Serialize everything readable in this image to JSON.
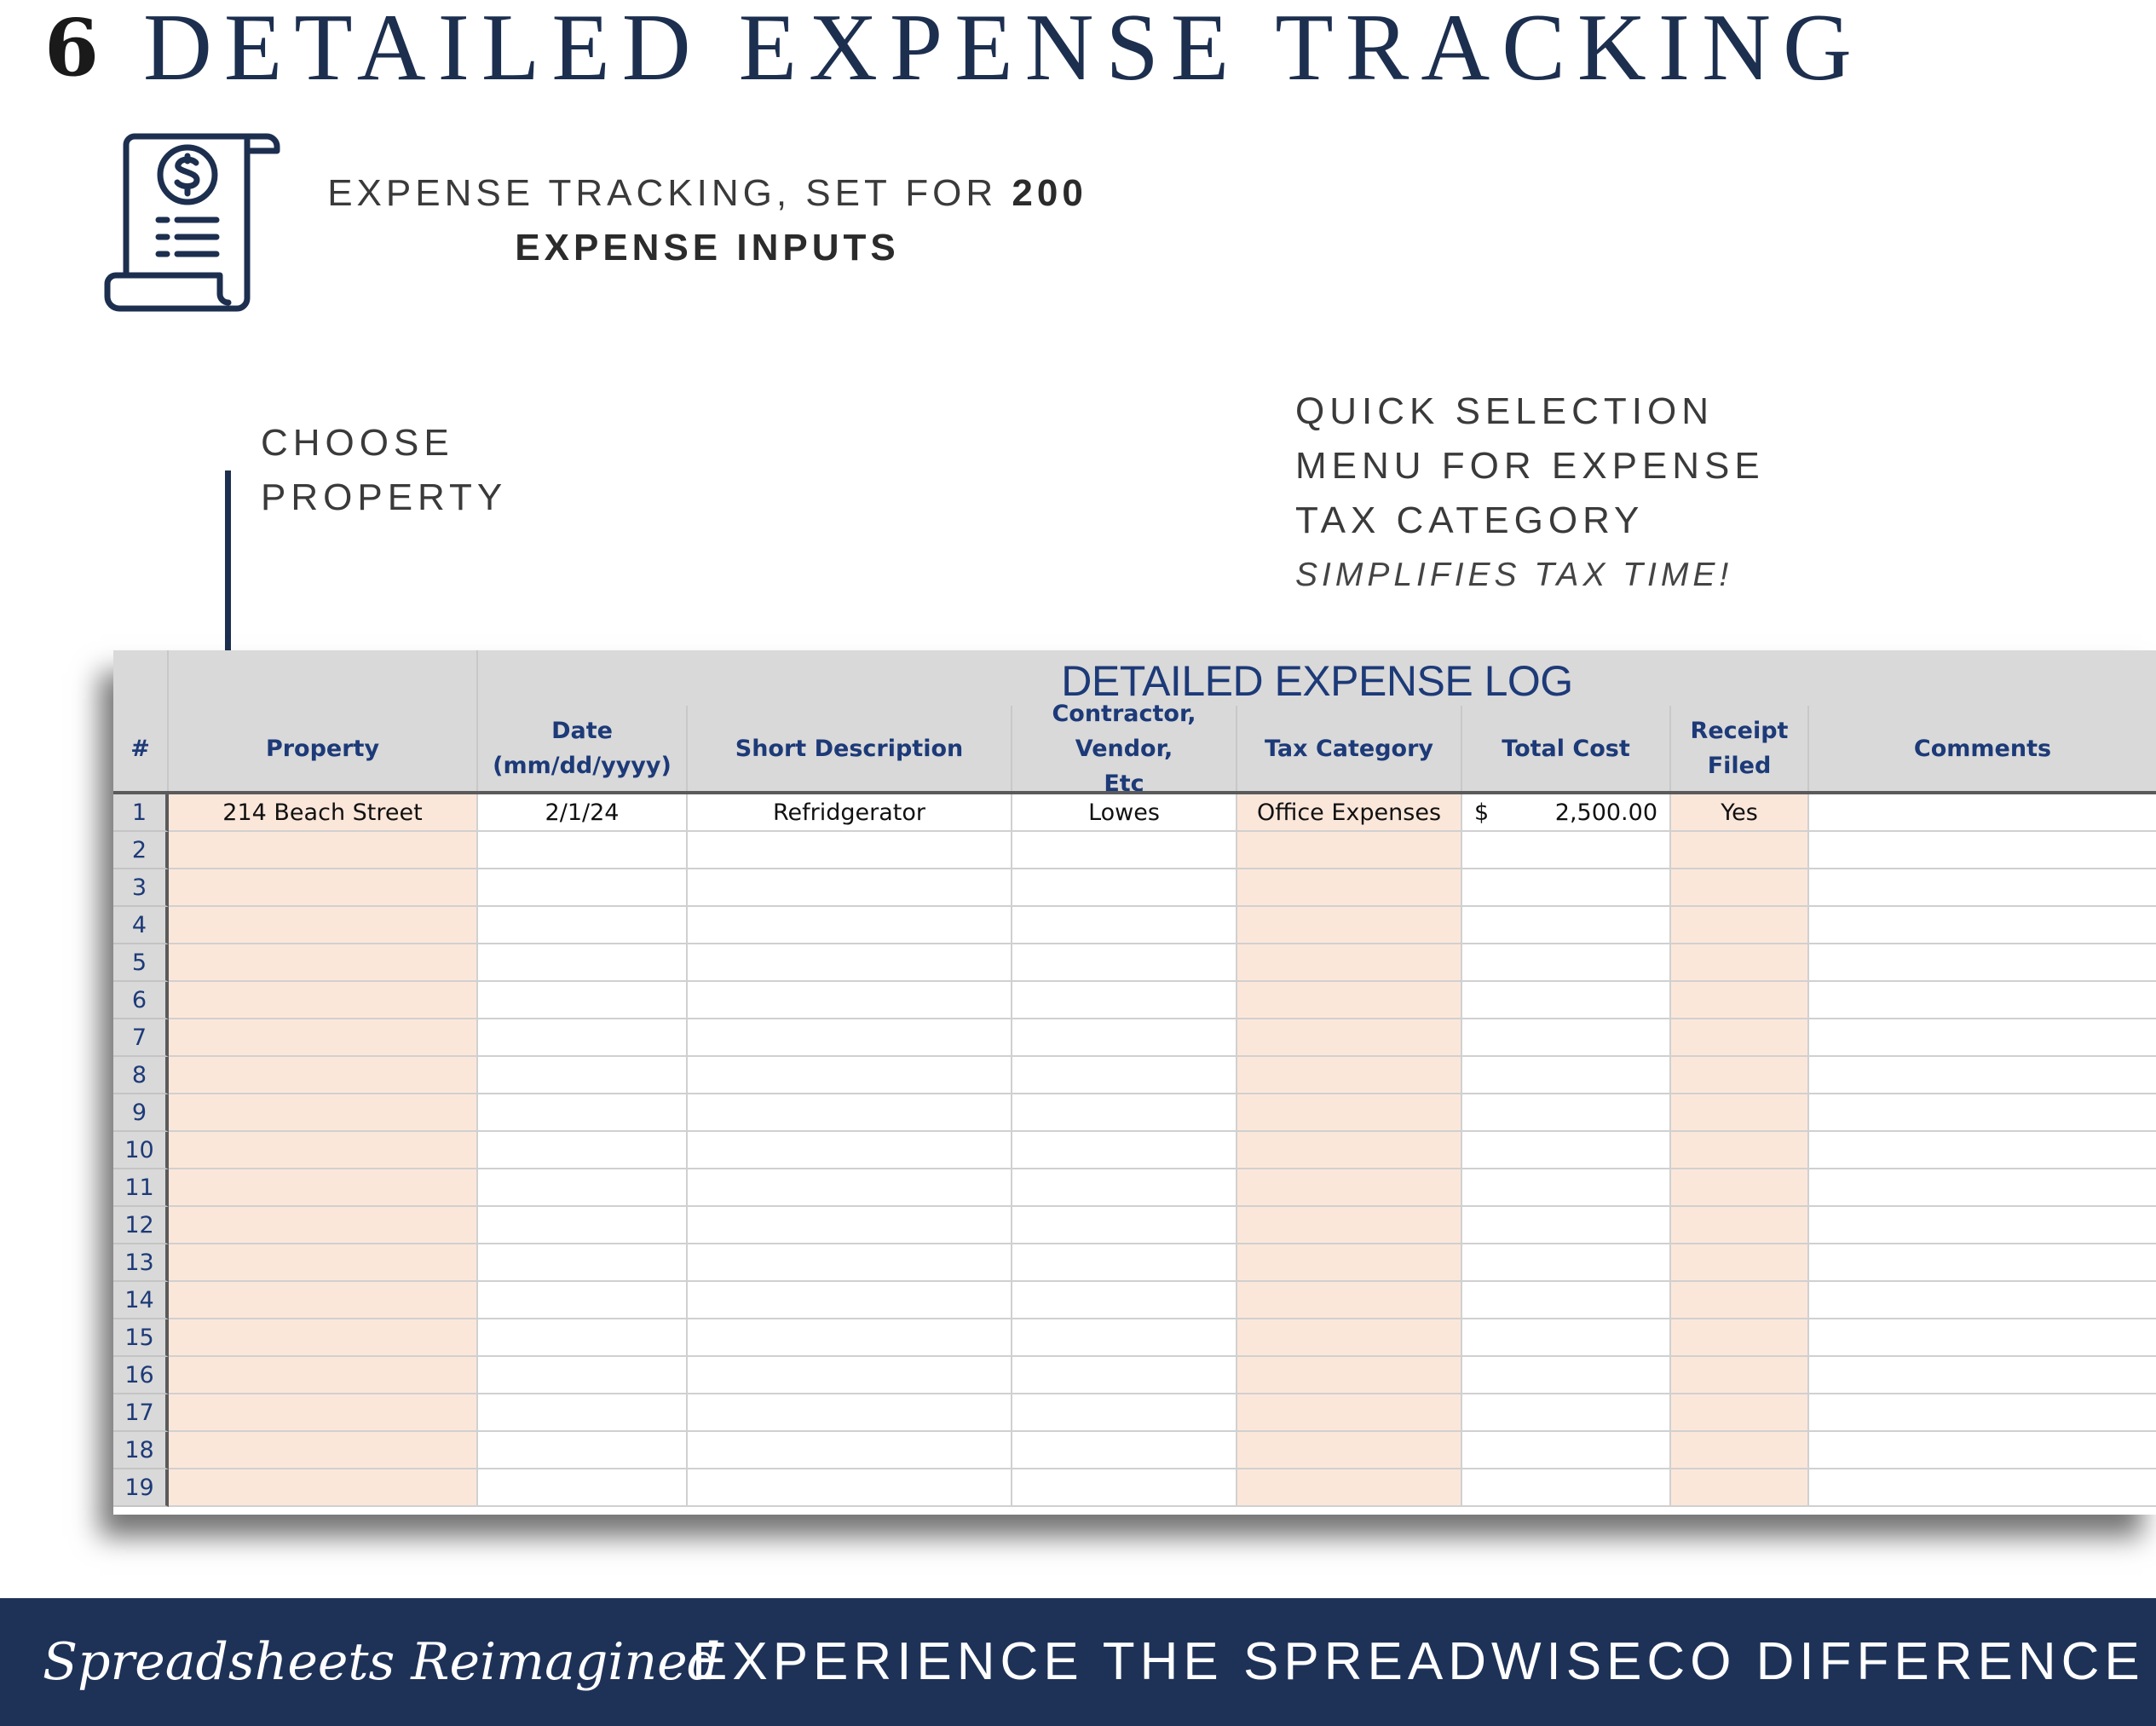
{
  "title": {
    "number": "6",
    "text": "DETAILED EXPENSE TRACKING"
  },
  "subhead": {
    "line1_prefix": "EXPENSE TRACKING, SET FOR ",
    "line1_bold": "200",
    "line2_bold": "EXPENSE INPUTS"
  },
  "callouts": {
    "property": {
      "line1": "CHOOSE",
      "line2": "PROPERTY"
    },
    "tax": {
      "line1": "QUICK SELECTION",
      "line2": "MENU FOR EXPENSE",
      "line3": "TAX CATEGORY",
      "note": "SIMPLIFIES TAX TIME!"
    }
  },
  "sheet": {
    "title": "DETAILED EXPENSE LOG",
    "headers": {
      "num": "#",
      "property": "Property",
      "date_l1": "Date",
      "date_l2": "(mm/dd/yyyy)",
      "description": "Short Description",
      "vendor_l1": "Contractor, Vendor,",
      "vendor_l2": "Etc",
      "tax_category": "Tax Category",
      "total_cost": "Total Cost",
      "receipt_l1": "Receipt",
      "receipt_l2": "Filed",
      "comments": "Comments"
    },
    "entry": {
      "num": "1",
      "property": "214 Beach Street",
      "date": "2/1/24",
      "description": "Refridgerator",
      "vendor": "Lowes",
      "tax_category": "Office Expenses",
      "currency": "$",
      "total_cost": "2,500.00",
      "receipt": "Yes",
      "comments": ""
    },
    "row_numbers": [
      "2",
      "3",
      "4",
      "5",
      "6",
      "7",
      "8",
      "9",
      "10",
      "11",
      "12",
      "13",
      "14",
      "15",
      "16",
      "17",
      "18",
      "19"
    ],
    "colors": {
      "peach": "#fbe7da",
      "header_gray": "#d9d9d9",
      "header_text": "#1d3a78"
    }
  },
  "footer": {
    "signature": "Spreadsheets Reimagined",
    "tagline": "EXPERIENCE THE SPREADWISECO DIFFERENCE",
    "background": "#1e3258"
  },
  "icons": {
    "receipt": "receipt-dollar-icon",
    "arrows": "down-arrow-icon"
  }
}
